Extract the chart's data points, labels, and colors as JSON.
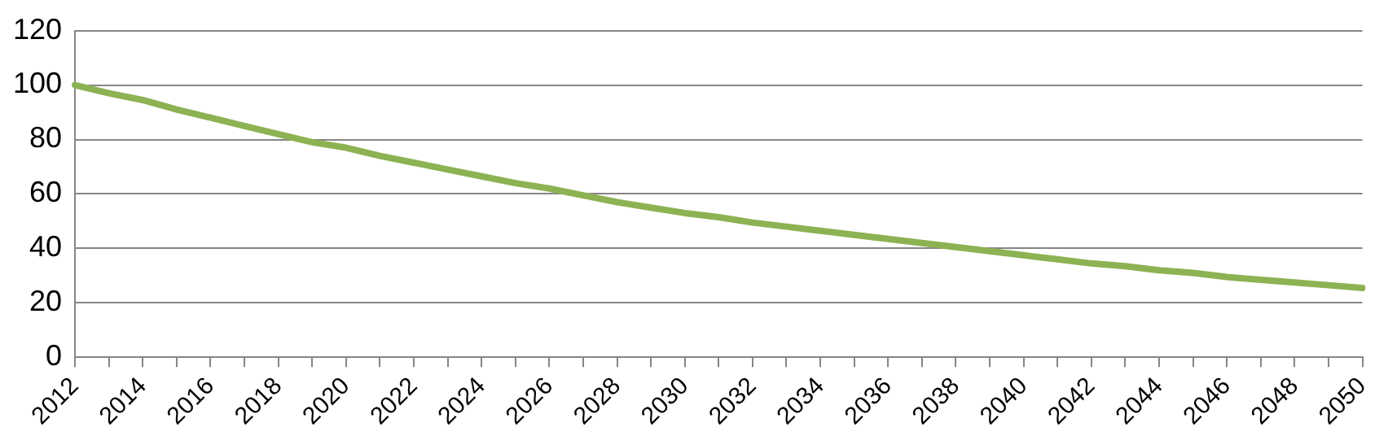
{
  "chart_data": {
    "type": "line",
    "categories": [
      "2012",
      null,
      "2014",
      null,
      "2016",
      null,
      "2018",
      null,
      "2020",
      null,
      "2022",
      null,
      "2024",
      null,
      "2026",
      null,
      "2028",
      null,
      "2030",
      null,
      "2032",
      null,
      "2034",
      null,
      "2036",
      null,
      "2038",
      null,
      "2040",
      null,
      "2042",
      null,
      "2044",
      null,
      "2046",
      null,
      "2048",
      null,
      "2050"
    ],
    "series": [
      {
        "color": "#8db253",
        "values": [
          100,
          97,
          94.5,
          91,
          88,
          85,
          82,
          79,
          77,
          74,
          71.5,
          69,
          66.5,
          64,
          62,
          59.5,
          57,
          55,
          53,
          51.5,
          49.5,
          48,
          46.5,
          45,
          43.5,
          42,
          40.5,
          39,
          37.5,
          36,
          34.5,
          33.5,
          32,
          31,
          29.5,
          28.5,
          27.5,
          26.5,
          25.5
        ]
      }
    ],
    "ylim": [
      0,
      120
    ],
    "yticks": [
      0,
      20,
      40,
      60,
      80,
      100,
      120
    ],
    "grid": "y",
    "legend": false,
    "marker": "none",
    "line_style": "solid"
  }
}
